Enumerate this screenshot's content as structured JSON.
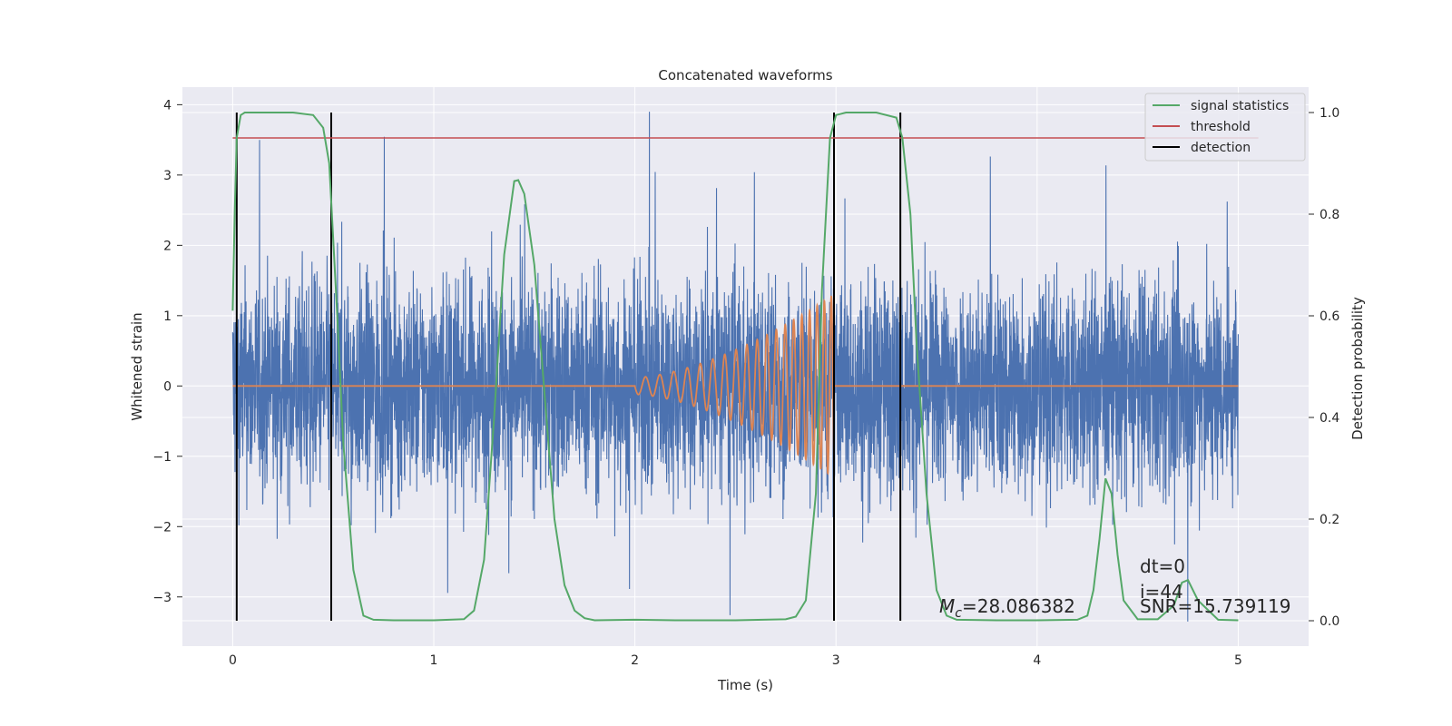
{
  "chart_data": {
    "type": "line",
    "title": "Concatenated waveforms",
    "xlabel": "Time (s)",
    "ylabel_left": "Whitened strain",
    "ylabel_right": "Detection probability",
    "xlim": [
      -0.25,
      5.35
    ],
    "ylim_left": [
      -3.7,
      4.25
    ],
    "ylim_right": [
      -0.05,
      1.05
    ],
    "x_ticks": [
      0,
      1,
      2,
      3,
      4,
      5
    ],
    "x_tick_labels": [
      "0",
      "1",
      "2",
      "3",
      "4",
      "5"
    ],
    "y_left_ticks": [
      -3,
      -2,
      -1,
      0,
      1,
      2,
      3,
      4
    ],
    "y_left_tick_labels": [
      "−3",
      "−2",
      "−1",
      "0",
      "1",
      "2",
      "3",
      "4"
    ],
    "y_right_ticks": [
      0.0,
      0.2,
      0.4,
      0.6,
      0.8,
      1.0
    ],
    "y_right_tick_labels": [
      "0.0",
      "0.2",
      "0.4",
      "0.6",
      "0.8",
      "1.0"
    ],
    "grid": true,
    "legend_position": "top-right",
    "colors": {
      "background": "#eaeaf2",
      "grid": "#ffffff",
      "strain": "#4c72b0",
      "waveform": "#dd8452",
      "signal_statistics": "#55a868",
      "threshold": "#c44e52",
      "detection": "#000000"
    },
    "series": [
      {
        "name": "signal statistics",
        "axis": "right",
        "x": [
          0.0,
          0.01,
          0.02,
          0.04,
          0.06,
          0.1,
          0.2,
          0.3,
          0.4,
          0.45,
          0.48,
          0.52,
          0.55,
          0.6,
          0.65,
          0.7,
          0.8,
          1.0,
          1.15,
          1.2,
          1.25,
          1.3,
          1.35,
          1.4,
          1.42,
          1.45,
          1.5,
          1.55,
          1.6,
          1.65,
          1.7,
          1.75,
          1.8,
          2.0,
          2.2,
          2.5,
          2.75,
          2.8,
          2.85,
          2.9,
          2.93,
          2.97,
          3.0,
          3.05,
          3.1,
          3.2,
          3.3,
          3.33,
          3.37,
          3.4,
          3.45,
          3.5,
          3.55,
          3.6,
          3.8,
          4.0,
          4.2,
          4.25,
          4.28,
          4.31,
          4.34,
          4.37,
          4.4,
          4.43,
          4.5,
          4.6,
          4.68,
          4.72,
          4.75,
          4.8,
          4.9,
          5.0
        ],
        "y": [
          0.61,
          0.8,
          0.95,
          0.995,
          1.0,
          1.0,
          1.0,
          1.0,
          0.995,
          0.97,
          0.9,
          0.6,
          0.35,
          0.1,
          0.01,
          0.002,
          0.001,
          0.001,
          0.003,
          0.02,
          0.12,
          0.4,
          0.72,
          0.865,
          0.867,
          0.84,
          0.7,
          0.45,
          0.2,
          0.07,
          0.02,
          0.005,
          0.001,
          0.002,
          0.001,
          0.001,
          0.003,
          0.008,
          0.04,
          0.25,
          0.65,
          0.95,
          0.995,
          1.0,
          1.0,
          1.0,
          0.99,
          0.95,
          0.8,
          0.55,
          0.25,
          0.06,
          0.01,
          0.002,
          0.001,
          0.001,
          0.002,
          0.01,
          0.06,
          0.16,
          0.28,
          0.25,
          0.13,
          0.04,
          0.003,
          0.003,
          0.03,
          0.075,
          0.08,
          0.04,
          0.002,
          0.001
        ]
      },
      {
        "name": "threshold",
        "axis": "right",
        "x": [
          0.0,
          5.1
        ],
        "y": [
          0.95,
          0.95
        ]
      },
      {
        "name": "detection",
        "axis": "right",
        "x_positions": [
          0.02,
          0.49,
          2.99,
          3.32
        ],
        "y_range": [
          0.0,
          1.0
        ]
      },
      {
        "axis": "left",
        "noise_envelope_x": [
          0.0,
          5.0
        ],
        "noise_range": [
          -3.35,
          3.9
        ]
      },
      {
        "axis": "left",
        "chirp_start": 2.0,
        "chirp_end": 2.99,
        "amplitude_start": 0.12,
        "amplitude_end": 1.3,
        "baseline": 0.0
      }
    ],
    "legend": [
      "signal statistics",
      "threshold",
      "detection"
    ],
    "annotations": {
      "mc_symbol": "M",
      "mc_sub": "c",
      "mc_value": "=28.086382",
      "dt": "dt=0",
      "i": "i=44",
      "snr": "SNR=15.739119"
    }
  }
}
